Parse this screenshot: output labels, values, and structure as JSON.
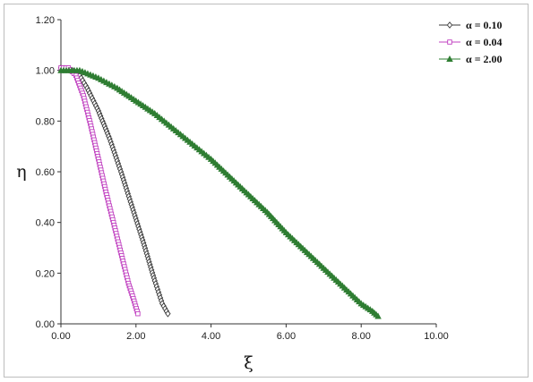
{
  "chart_data": {
    "type": "scatter",
    "xlabel": "ξ",
    "ylabel": "η",
    "xlim": [
      0,
      10
    ],
    "ylim": [
      0,
      1.2
    ],
    "x_ticks": [
      "0.00",
      "2.00",
      "4.00",
      "6.00",
      "8.00",
      "10.00"
    ],
    "y_ticks": [
      "0.00",
      "0.20",
      "0.40",
      "0.60",
      "0.80",
      "1.00",
      "1.20"
    ],
    "grid": false,
    "legend_position": "top-right",
    "series": [
      {
        "name": "α = 0.10",
        "marker": "diamond",
        "color": "#3a3a3a",
        "marker_fill": "#ffffff",
        "x": [
          0.0,
          0.3,
          0.5,
          0.7,
          1.0,
          1.3,
          1.6,
          1.9,
          2.2,
          2.5,
          2.7,
          2.85
        ],
        "y": [
          1.01,
          1.0,
          0.98,
          0.93,
          0.84,
          0.73,
          0.6,
          0.46,
          0.32,
          0.17,
          0.08,
          0.04
        ]
      },
      {
        "name": "α = 0.04",
        "marker": "square",
        "color": "#c040c0",
        "marker_fill": "#ffffff",
        "x": [
          0.0,
          0.2,
          0.4,
          0.6,
          0.8,
          1.0,
          1.2,
          1.4,
          1.6,
          1.8,
          1.95,
          2.05
        ],
        "y": [
          1.01,
          1.01,
          0.98,
          0.9,
          0.78,
          0.65,
          0.52,
          0.4,
          0.28,
          0.16,
          0.09,
          0.04
        ]
      },
      {
        "name": "α = 2.00",
        "marker": "triangle",
        "color": "#2e7d32",
        "marker_fill": "#2e7d32",
        "x": [
          0.0,
          0.5,
          1.0,
          1.5,
          2.0,
          2.5,
          3.0,
          3.5,
          4.0,
          4.5,
          5.0,
          5.5,
          6.0,
          6.5,
          7.0,
          7.5,
          8.0,
          8.3,
          8.45
        ],
        "y": [
          1.0,
          1.0,
          0.97,
          0.93,
          0.88,
          0.83,
          0.77,
          0.71,
          0.65,
          0.58,
          0.51,
          0.44,
          0.36,
          0.29,
          0.22,
          0.15,
          0.08,
          0.05,
          0.03
        ]
      }
    ]
  }
}
